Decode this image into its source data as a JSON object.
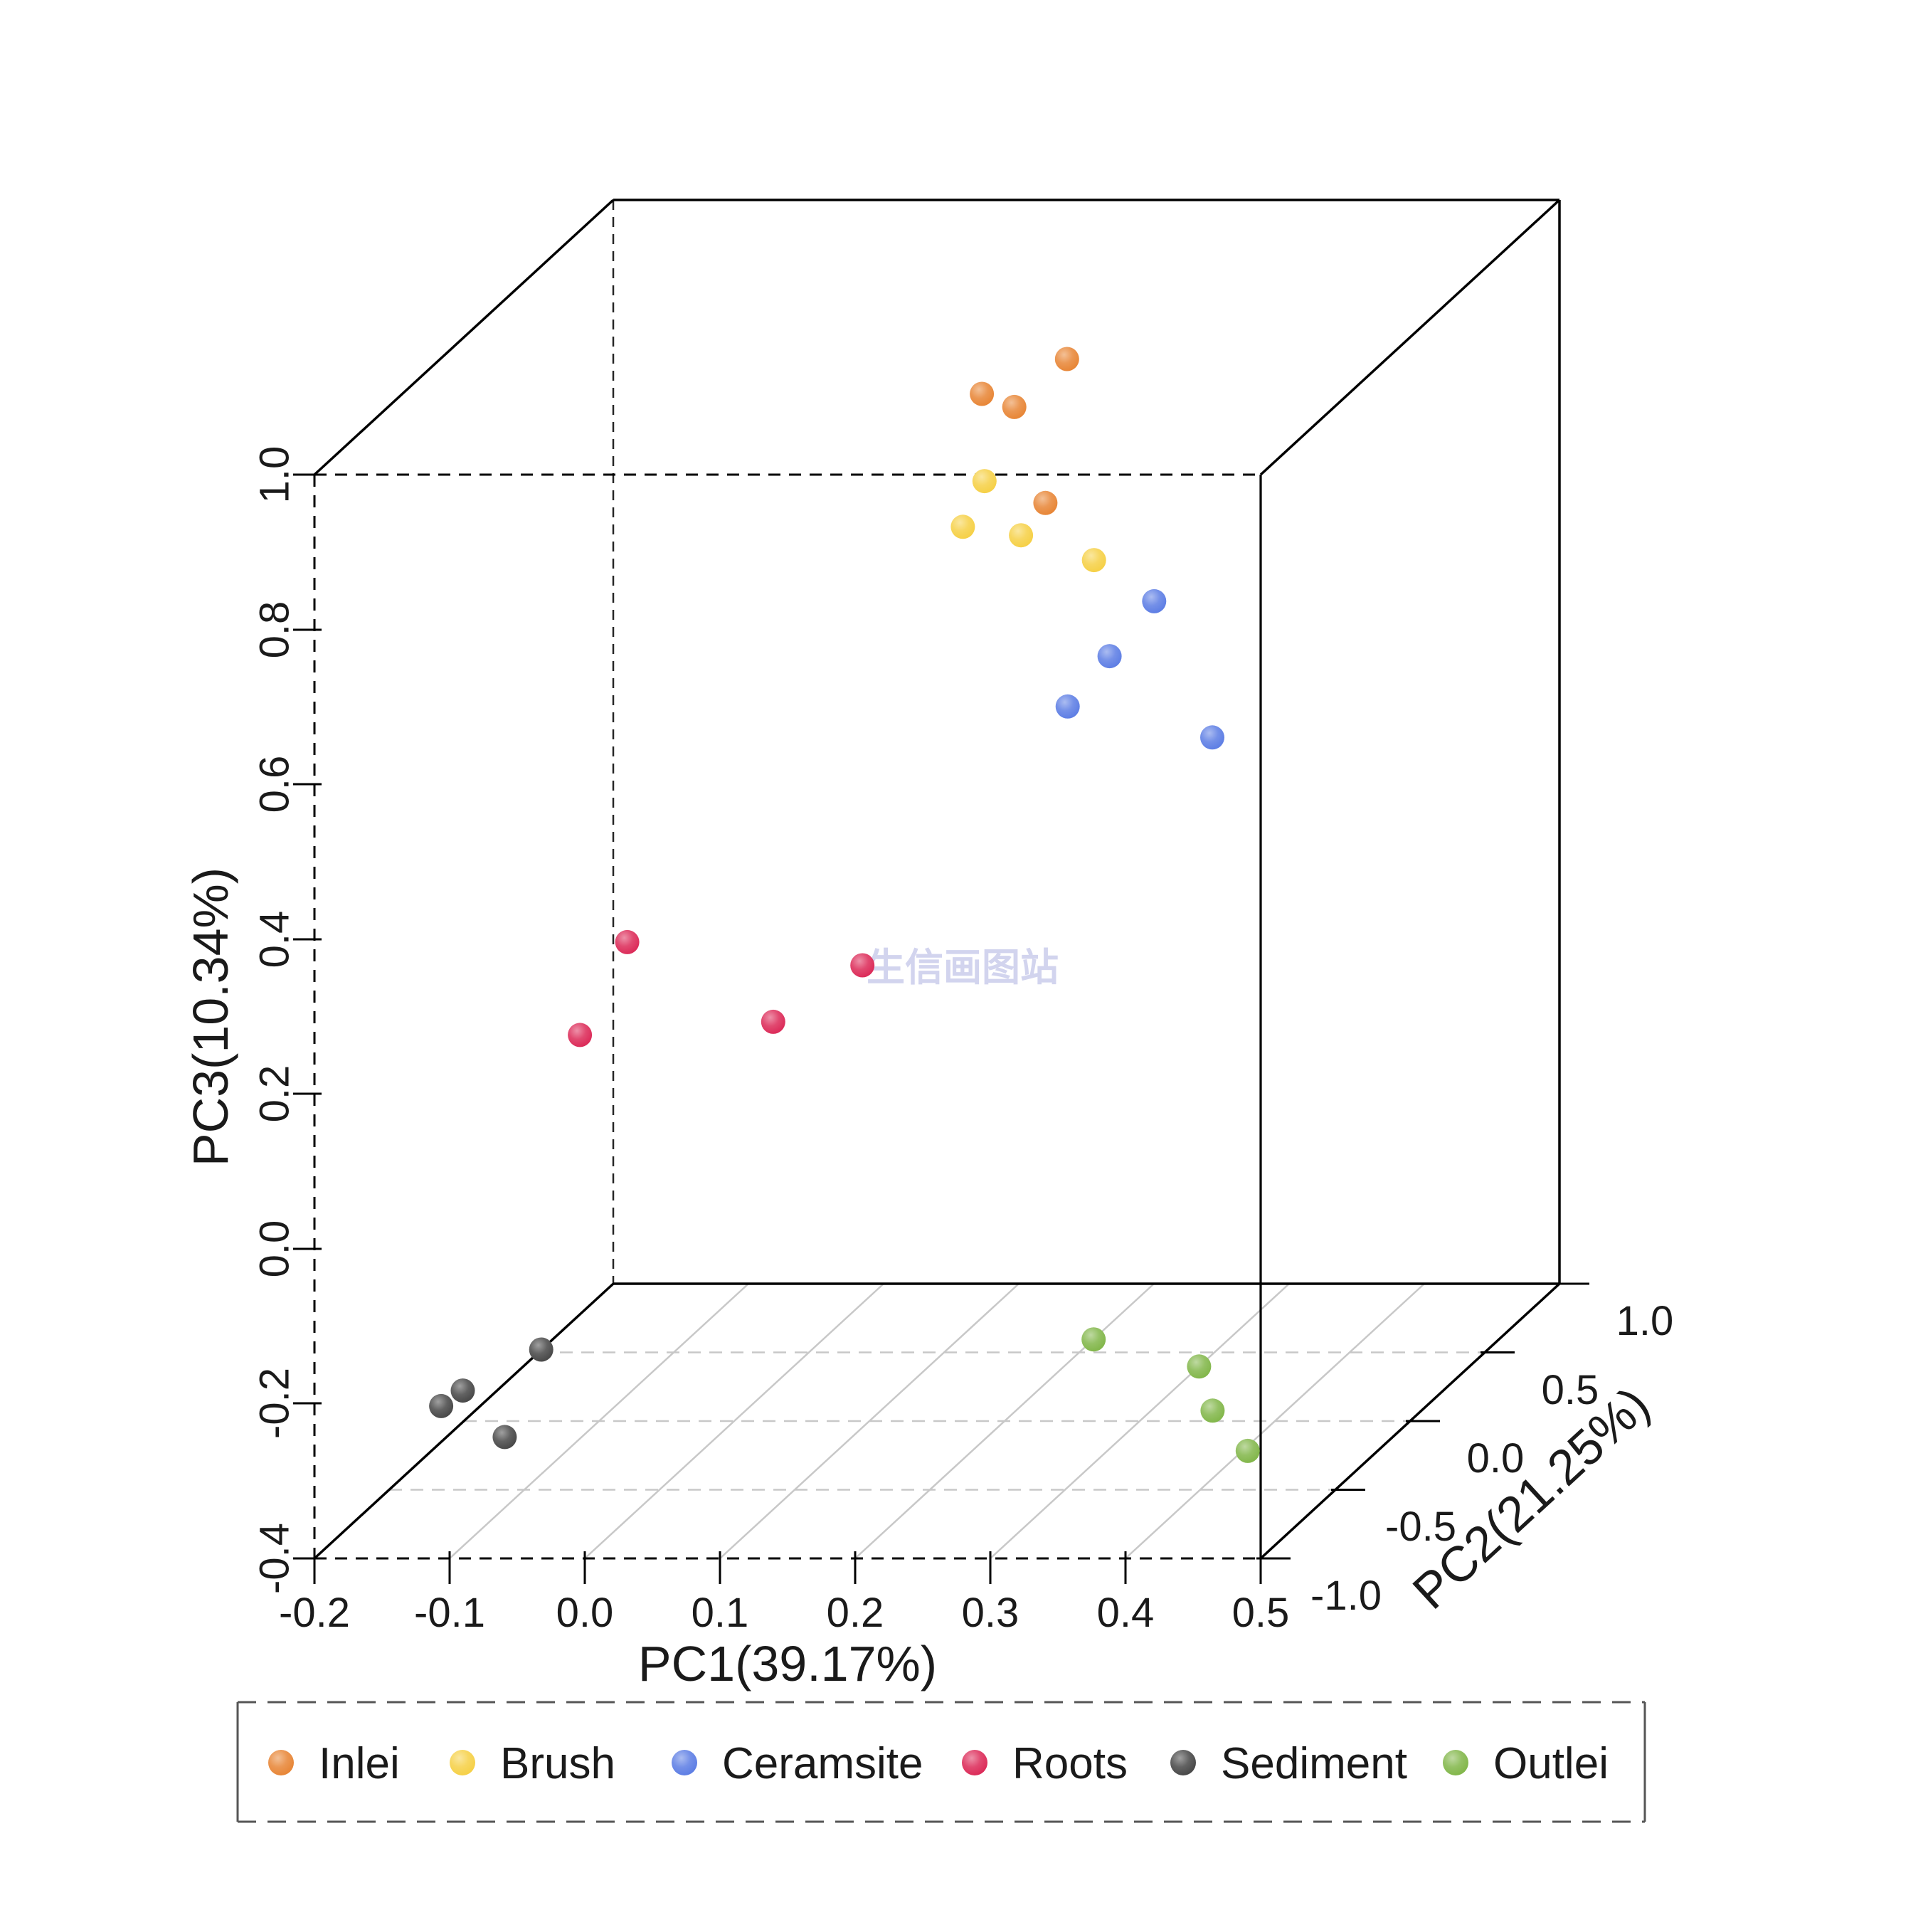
{
  "watermark": {
    "text": "生信画图站"
  },
  "chart_data": {
    "type": "scatter",
    "projection": "3d-pca",
    "title": "",
    "grid": true,
    "legend_position": "bottom",
    "axes": {
      "pc1": {
        "label": "PC1(39.17%)",
        "range": [
          -0.2,
          0.5
        ],
        "ticks": [
          "-0.2",
          "-0.1",
          "0.0",
          "0.1",
          "0.2",
          "0.3",
          "0.4",
          "0.5"
        ]
      },
      "pc2": {
        "label": "PC2(21.25%)",
        "range": [
          -1.0,
          1.0
        ],
        "ticks": [
          "-1.0",
          "-0.5",
          "0.0",
          "0.5",
          "1.0"
        ]
      },
      "pc3": {
        "label": "PC3(10.34%)",
        "range": [
          -0.4,
          1.0
        ],
        "ticks": [
          "1.0",
          "0.8",
          "0.6",
          "0.4",
          "0.2",
          "0.0",
          "-0.2",
          "-0.4"
        ]
      }
    },
    "series": [
      {
        "name": "Inlei",
        "color": "#E6802D",
        "points": [
          {
            "pc1": 0.202,
            "pc2": 0.4,
            "pc3": 0.901
          },
          {
            "pc1": 0.139,
            "pc2": 0.4,
            "pc3": 0.856
          },
          {
            "pc1": 0.163,
            "pc2": 0.4,
            "pc3": 0.839
          },
          {
            "pc1": 0.186,
            "pc2": 0.4,
            "pc3": 0.715
          }
        ]
      },
      {
        "name": "Brush",
        "color": "#F5CE3E",
        "points": [
          {
            "pc1": 0.152,
            "pc2": 0.3,
            "pc3": 0.761
          },
          {
            "pc1": 0.136,
            "pc2": 0.3,
            "pc3": 0.702
          },
          {
            "pc1": 0.179,
            "pc2": 0.3,
            "pc3": 0.691
          },
          {
            "pc1": 0.233,
            "pc2": 0.3,
            "pc3": 0.659
          }
        ]
      },
      {
        "name": "Ceramsite",
        "color": "#5678E3",
        "points": [
          {
            "pc1": 0.272,
            "pc2": 0.35,
            "pc3": 0.597
          },
          {
            "pc1": 0.239,
            "pc2": 0.35,
            "pc3": 0.526
          },
          {
            "pc1": 0.208,
            "pc2": 0.35,
            "pc3": 0.461
          },
          {
            "pc1": 0.315,
            "pc2": 0.35,
            "pc3": 0.421
          }
        ]
      },
      {
        "name": "Roots",
        "color": "#DA2151",
        "points": [
          {
            "pc1": -0.046,
            "pc2": -0.3,
            "pc3": 0.272
          },
          {
            "pc1": -0.081,
            "pc2": -0.3,
            "pc3": 0.152
          },
          {
            "pc1": 0.062,
            "pc2": -0.3,
            "pc3": 0.169
          },
          {
            "pc1": 0.128,
            "pc2": -0.3,
            "pc3": 0.242
          }
        ]
      },
      {
        "name": "Sediment",
        "color": "#404040",
        "points": [
          {
            "pc1": -0.082,
            "pc2": -0.55,
            "pc3": -0.21
          },
          {
            "pc1": -0.14,
            "pc2": -0.55,
            "pc3": -0.263
          },
          {
            "pc1": -0.156,
            "pc2": -0.55,
            "pc3": -0.283
          },
          {
            "pc1": -0.109,
            "pc2": -0.55,
            "pc3": -0.323
          }
        ]
      },
      {
        "name": "Outlei",
        "color": "#7CB342",
        "points": [
          {
            "pc1": 0.288,
            "pc2": -0.2,
            "pc3": -0.259
          },
          {
            "pc1": 0.366,
            "pc2": -0.2,
            "pc3": -0.294
          },
          {
            "pc1": 0.376,
            "pc2": -0.2,
            "pc3": -0.351
          },
          {
            "pc1": 0.402,
            "pc2": -0.2,
            "pc3": -0.403
          }
        ]
      }
    ]
  }
}
